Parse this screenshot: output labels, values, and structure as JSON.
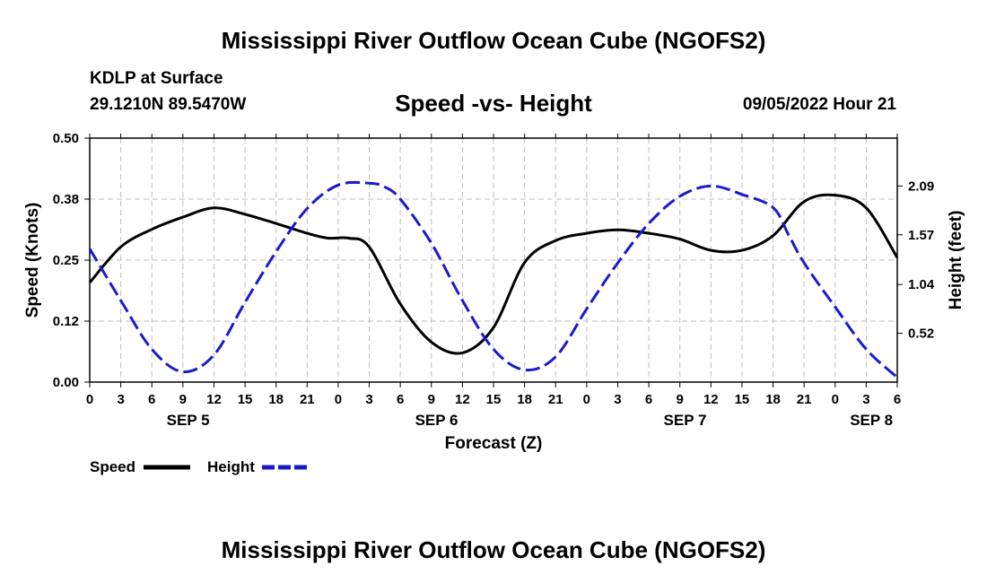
{
  "header": {
    "title": "Mississippi River Outflow Ocean Cube (NGOFS2)",
    "station": "KDLP at Surface",
    "coords": "29.1210N  89.5470W",
    "subtitle": "Speed -vs- Height",
    "datetime": "09/05/2022 Hour 21"
  },
  "footer": {
    "title": "Mississippi River Outflow Ocean Cube (NGOFS2)"
  },
  "chart_data": {
    "type": "line",
    "xlabel": "Forecast (Z)",
    "ylabel_left": "Speed (Knots)",
    "ylabel_right": "Height (feet)",
    "x_range": [
      0,
      78
    ],
    "x_ticks": [
      0,
      3,
      6,
      9,
      12,
      15,
      18,
      21,
      24,
      27,
      30,
      33,
      36,
      39,
      42,
      45,
      48,
      51,
      54,
      57,
      60,
      63,
      66,
      69,
      72,
      75,
      78
    ],
    "x_tick_labels": [
      "0",
      "3",
      "6",
      "9",
      "12",
      "15",
      "18",
      "21",
      "0",
      "3",
      "6",
      "9",
      "12",
      "15",
      "18",
      "21",
      "0",
      "3",
      "6",
      "9",
      "12",
      "15",
      "18",
      "21",
      "0",
      "3",
      "6"
    ],
    "day_labels": [
      {
        "x": 9.5,
        "label": "SEP 5"
      },
      {
        "x": 33.5,
        "label": "SEP 6"
      },
      {
        "x": 57.5,
        "label": "SEP 7"
      },
      {
        "x": 75.5,
        "label": "SEP 8"
      }
    ],
    "ylim_left": [
      0,
      0.5
    ],
    "yticks_left": [
      0,
      0.125,
      0.25,
      0.375,
      0.5
    ],
    "ytick_labels_left": [
      "0.00",
      "0.12",
      "0.25",
      "0.38",
      "0.50"
    ],
    "ylim_right": [
      0,
      2.6
    ],
    "yticks_right": [
      0.52,
      1.04,
      1.57,
      2.09
    ],
    "ytick_labels_right": [
      "0.52",
      "1.04",
      "1.57",
      "2.09"
    ],
    "grid": true,
    "legend": [
      {
        "name": "Speed",
        "color": "#000000",
        "style": "solid"
      },
      {
        "name": "Height",
        "color": "#1a1acc",
        "style": "dashed"
      }
    ],
    "series": [
      {
        "name": "Speed",
        "axis": "left",
        "color": "#000000",
        "style": "solid",
        "x": [
          0,
          3,
          6,
          9,
          12,
          15,
          18,
          21,
          23,
          25,
          27,
          30,
          33,
          36,
          39,
          42,
          45,
          48,
          51,
          54,
          57,
          60,
          63,
          66,
          69,
          72,
          75,
          78
        ],
        "values": [
          0.204,
          0.277,
          0.313,
          0.338,
          0.357,
          0.344,
          0.325,
          0.305,
          0.295,
          0.295,
          0.277,
          0.16,
          0.082,
          0.06,
          0.112,
          0.245,
          0.29,
          0.305,
          0.312,
          0.305,
          0.293,
          0.27,
          0.27,
          0.3,
          0.37,
          0.383,
          0.357,
          0.255
        ]
      },
      {
        "name": "Height",
        "axis": "right",
        "color": "#1a1acc",
        "style": "dashed",
        "x": [
          0,
          3,
          6,
          9,
          12,
          15,
          18,
          21,
          24,
          27,
          28.5,
          30,
          33,
          36,
          39,
          42,
          45,
          48,
          51,
          54,
          57,
          60,
          63,
          66,
          67.5,
          69,
          72,
          75,
          78
        ],
        "values": [
          1.42,
          0.87,
          0.35,
          0.11,
          0.29,
          0.85,
          1.39,
          1.85,
          2.1,
          2.12,
          2.08,
          1.95,
          1.48,
          0.87,
          0.35,
          0.13,
          0.27,
          0.78,
          1.27,
          1.69,
          1.98,
          2.09,
          2.0,
          1.86,
          1.57,
          1.27,
          0.8,
          0.35,
          0.05
        ]
      }
    ]
  }
}
